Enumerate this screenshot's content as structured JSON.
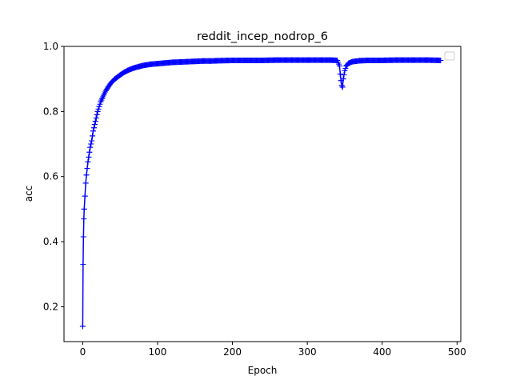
{
  "chart_data": {
    "type": "line",
    "title": "reddit_incep_nodrop_6",
    "xlabel": "Epoch",
    "ylabel": "acc",
    "xlim": [
      -25,
      505
    ],
    "ylim": [
      0.093,
      1.0
    ],
    "xticks": [
      0,
      100,
      200,
      300,
      400,
      500
    ],
    "yticks": [
      0.2,
      0.4,
      0.6,
      0.8,
      1.0
    ],
    "xtick_labels": [
      "0",
      "100",
      "200",
      "300",
      "400",
      "500"
    ],
    "ytick_labels": [
      "0.2",
      "0.4",
      "0.6",
      "0.8",
      "1.0"
    ],
    "grid": false,
    "legend": {
      "placement": "top-right",
      "entries": []
    },
    "series": [
      {
        "color": "#0000ff",
        "marker": "+",
        "x": [
          0,
          0.5,
          1,
          1.5,
          2,
          3,
          4,
          5,
          6,
          7,
          8,
          9,
          10,
          11,
          12,
          13,
          14,
          15,
          16,
          17,
          18,
          19,
          20,
          22,
          24,
          26,
          28,
          30,
          32,
          34,
          36,
          38,
          40,
          43,
          46,
          50,
          55,
          60,
          65,
          70,
          75,
          80,
          90,
          100,
          110,
          120,
          130,
          140,
          150,
          160,
          170,
          180,
          200,
          220,
          240,
          260,
          280,
          300,
          320,
          330,
          340,
          343,
          344,
          345,
          346,
          347,
          348,
          350,
          352,
          355,
          360,
          370,
          380,
          400,
          420,
          440,
          460,
          478
        ],
        "y": [
          0.14,
          0.33,
          0.415,
          0.47,
          0.5,
          0.54,
          0.58,
          0.605,
          0.625,
          0.645,
          0.66,
          0.675,
          0.69,
          0.7,
          0.71,
          0.725,
          0.74,
          0.75,
          0.76,
          0.77,
          0.78,
          0.79,
          0.8,
          0.815,
          0.83,
          0.84,
          0.85,
          0.86,
          0.868,
          0.875,
          0.882,
          0.888,
          0.893,
          0.9,
          0.905,
          0.912,
          0.92,
          0.926,
          0.931,
          0.935,
          0.938,
          0.941,
          0.945,
          0.947,
          0.949,
          0.951,
          0.952,
          0.953,
          0.954,
          0.955,
          0.955,
          0.956,
          0.957,
          0.957,
          0.957,
          0.958,
          0.958,
          0.958,
          0.958,
          0.958,
          0.957,
          0.94,
          0.915,
          0.895,
          0.88,
          0.875,
          0.9,
          0.925,
          0.94,
          0.948,
          0.953,
          0.956,
          0.957,
          0.957,
          0.958,
          0.958,
          0.958,
          0.957
        ]
      }
    ]
  }
}
